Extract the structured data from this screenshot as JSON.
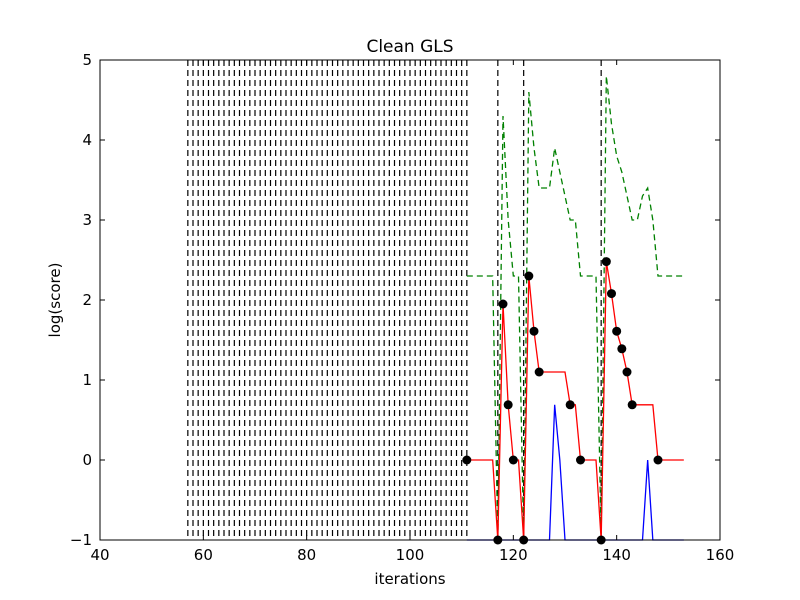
{
  "chart_data": {
    "type": "line",
    "title": "Clean GLS",
    "xlabel": "iterations",
    "ylabel": "log(score)",
    "xlim": [
      40,
      160
    ],
    "ylim": [
      -1,
      5
    ],
    "xticks": [
      40,
      60,
      80,
      100,
      120,
      140,
      160
    ],
    "yticks": [
      -1,
      0,
      1,
      2,
      3,
      4,
      5
    ],
    "xtick_labels": [
      "40",
      "60",
      "80",
      "100",
      "120",
      "140",
      "160"
    ],
    "ytick_labels": [
      "−1",
      "0",
      "1",
      "2",
      "3",
      "4",
      "5"
    ],
    "grid": false,
    "legend": "none",
    "colors": {
      "red": "#ff0000",
      "green": "#008000",
      "blue": "#0000ff",
      "marker": "#000000",
      "vline": "#000000"
    },
    "vlines": [
      57,
      58,
      59,
      60,
      61,
      62,
      63,
      64,
      65,
      66,
      67,
      68,
      69,
      70,
      71,
      72,
      73,
      74,
      75,
      76,
      77,
      78,
      79,
      80,
      81,
      82,
      83,
      84,
      85,
      86,
      87,
      88,
      89,
      90,
      91,
      92,
      93,
      94,
      95,
      96,
      97,
      98,
      99,
      100,
      101,
      102,
      103,
      104,
      105,
      106,
      107,
      108,
      109,
      110,
      111,
      117,
      122,
      137
    ],
    "series": [
      {
        "style": "green-dashed",
        "x": [
          111,
          115,
          116,
          117,
          118,
          119,
          120,
          121,
          122,
          123,
          124,
          125,
          126,
          127,
          128,
          129,
          130,
          131,
          132,
          133,
          134,
          135,
          136,
          137,
          138,
          139,
          140,
          141,
          142,
          143,
          144,
          145,
          146,
          147,
          148,
          149,
          150,
          151,
          152,
          153
        ],
        "y": [
          2.3,
          2.3,
          2.3,
          -1,
          4.3,
          3.0,
          2.3,
          2.3,
          -1,
          4.6,
          3.9,
          3.4,
          3.4,
          3.4,
          3.9,
          3.6,
          3.3,
          3.0,
          3.0,
          2.3,
          2.3,
          2.3,
          2.3,
          -1,
          4.8,
          4.2,
          3.8,
          3.6,
          3.3,
          3.0,
          3.0,
          3.3,
          3.4,
          3.0,
          2.3,
          2.3,
          2.3,
          2.3,
          2.3,
          2.3
        ]
      },
      {
        "style": "red-solid",
        "x": [
          111,
          115,
          116,
          117,
          118,
          119,
          120,
          121,
          122,
          123,
          124,
          125,
          126,
          127,
          128,
          129,
          130,
          131,
          132,
          133,
          134,
          135,
          136,
          137,
          138,
          139,
          140,
          141,
          142,
          143,
          144,
          145,
          146,
          147,
          148,
          149,
          150,
          151,
          152,
          153
        ],
        "y": [
          0,
          0,
          0,
          -1,
          1.95,
          0.69,
          0,
          0,
          -1,
          2.3,
          1.61,
          1.1,
          1.1,
          1.1,
          1.1,
          1.1,
          1.1,
          0.69,
          0.69,
          0,
          0,
          0,
          0,
          -1,
          2.48,
          2.08,
          1.61,
          1.39,
          1.1,
          0.69,
          0.69,
          0.69,
          0.69,
          0.69,
          0,
          0,
          0,
          0,
          0,
          0
        ]
      },
      {
        "style": "blue-solid",
        "x": [
          111,
          126,
          127,
          128,
          129,
          130,
          131,
          140,
          144,
          145,
          146,
          147,
          148,
          153
        ],
        "y": [
          -1,
          -1,
          -1,
          0.69,
          0,
          -1,
          -1,
          -1,
          -1,
          -1,
          0,
          -1,
          -1,
          -1
        ]
      }
    ],
    "markers": {
      "style": "black-dots",
      "x": [
        111,
        117,
        118,
        119,
        120,
        122,
        123,
        124,
        125,
        131,
        133,
        137,
        138,
        139,
        140,
        141,
        142,
        143,
        148
      ],
      "y": [
        0,
        -1,
        1.95,
        0.69,
        0,
        -1,
        2.3,
        1.61,
        1.1,
        0.69,
        0,
        -1,
        2.48,
        2.08,
        1.61,
        1.39,
        1.1,
        0.69,
        0
      ]
    }
  }
}
